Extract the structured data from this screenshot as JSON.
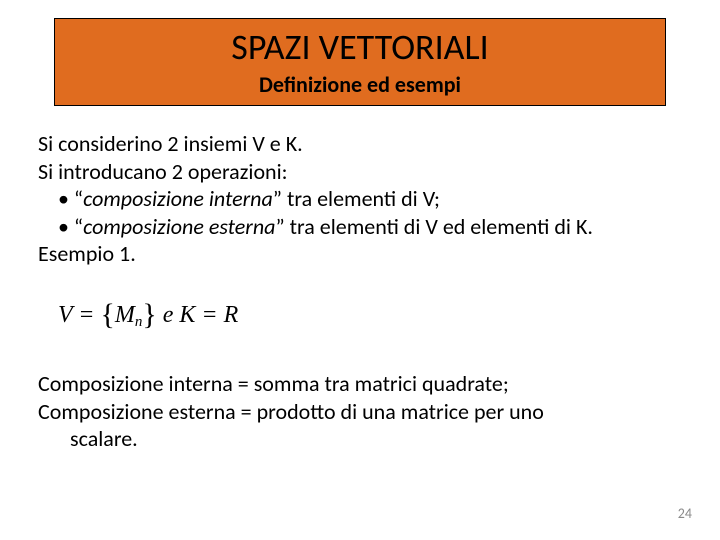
{
  "header": {
    "title": "SPAZI VETTORIALI",
    "subtitle": "Definizione ed esempi",
    "bg_color": "#e06c1f",
    "border_color": "#000000"
  },
  "body": {
    "line1": "Si considerino 2 insiemi V e K.",
    "line2": "Si introducano 2 operazioni:",
    "bullet1_prefix": "• “",
    "bullet1_italic": "composizione interna",
    "bullet1_suffix": "” tra elementi di V;",
    "bullet2_prefix": "• “",
    "bullet2_italic": "composizione esterna",
    "bullet2_suffix": "” tra elementi di V ed elementi di K.",
    "example_label": "Esempio 1."
  },
  "formula": {
    "V": "V",
    "eq": " = ",
    "lbrace": "{",
    "M": "M",
    "n": "n",
    "rbrace": "}",
    "e": "  e  ",
    "K": "K",
    "eq2": " = ",
    "R": "R"
  },
  "body2": {
    "line1": "Composizione interna = somma tra matrici quadrate;",
    "line2a": "Composizione esterna = prodotto di una matrice per uno",
    "line2b": "scalare."
  },
  "page_number": "24"
}
